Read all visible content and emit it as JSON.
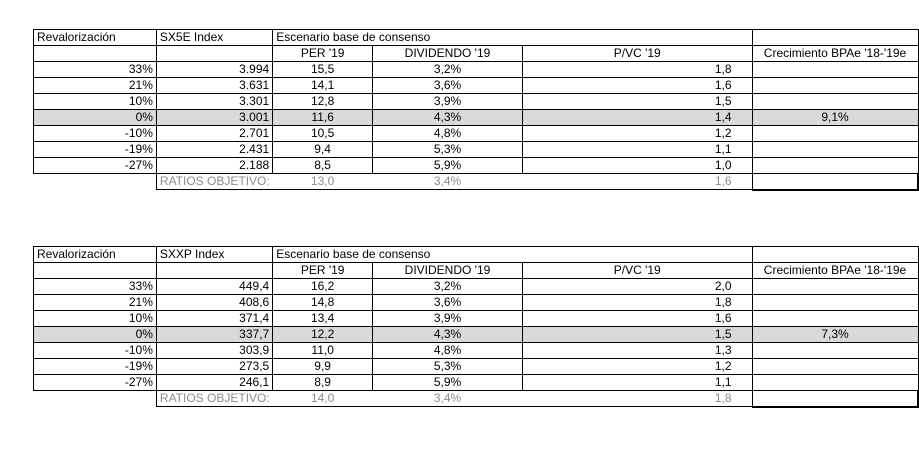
{
  "tables": [
    {
      "row_label_header": "Revalorización",
      "index_header": "SX5E Index",
      "scenario_header": "Escenario base de consenso",
      "col_per": "PER '19",
      "col_div": "DIVIDENDO '19",
      "col_pvc": "P/VC '19",
      "col_growth": "Crecimiento BPAe '18-'19e",
      "rows": [
        {
          "rev": "33%",
          "idx": "3.994",
          "per": "15,5",
          "div": "3,2%",
          "pvc": "1,8",
          "growth": ""
        },
        {
          "rev": "21%",
          "idx": "3.631",
          "per": "14,1",
          "div": "3,6%",
          "pvc": "1,6",
          "growth": ""
        },
        {
          "rev": "10%",
          "idx": "3.301",
          "per": "12,8",
          "div": "3,9%",
          "pvc": "1,5",
          "growth": ""
        },
        {
          "rev": "0%",
          "idx": "3.001",
          "per": "11,6",
          "div": "4,3%",
          "pvc": "1,4",
          "growth": "9,1%"
        },
        {
          "rev": "-10%",
          "idx": "2.701",
          "per": "10,5",
          "div": "4,8%",
          "pvc": "1,2",
          "growth": ""
        },
        {
          "rev": "-19%",
          "idx": "2.431",
          "per": "9,4",
          "div": "5,3%",
          "pvc": "1,1",
          "growth": ""
        },
        {
          "rev": "-27%",
          "idx": "2.188",
          "per": "8,5",
          "div": "5,9%",
          "pvc": "1,0",
          "growth": ""
        }
      ],
      "objective": {
        "label": "RATIOS OBJETIVO:",
        "per": "13,0",
        "div": "3,4%",
        "pvc": "1,6"
      }
    },
    {
      "row_label_header": "Revalorización",
      "index_header": "SXXP Index",
      "scenario_header": "Escenario base de consenso",
      "col_per": "PER '19",
      "col_div": "DIVIDENDO '19",
      "col_pvc": "P/VC '19",
      "col_growth": "Crecimiento BPAe '18-'19e",
      "rows": [
        {
          "rev": "33%",
          "idx": "449,4",
          "per": "16,2",
          "div": "3,2%",
          "pvc": "2,0",
          "growth": ""
        },
        {
          "rev": "21%",
          "idx": "408,6",
          "per": "14,8",
          "div": "3,6%",
          "pvc": "1,8",
          "growth": ""
        },
        {
          "rev": "10%",
          "idx": "371,4",
          "per": "13,4",
          "div": "3,9%",
          "pvc": "1,6",
          "growth": ""
        },
        {
          "rev": "0%",
          "idx": "337,7",
          "per": "12,2",
          "div": "4,3%",
          "pvc": "1,5",
          "growth": "7,3%"
        },
        {
          "rev": "-10%",
          "idx": "303,9",
          "per": "11,0",
          "div": "4,8%",
          "pvc": "1,3",
          "growth": ""
        },
        {
          "rev": "-19%",
          "idx": "273,5",
          "per": "9,9",
          "div": "5,3%",
          "pvc": "1,2",
          "growth": ""
        },
        {
          "rev": "-27%",
          "idx": "246,1",
          "per": "8,9",
          "div": "5,9%",
          "pvc": "1,1",
          "growth": ""
        }
      ],
      "objective": {
        "label": "RATIOS OBJETIVO:",
        "per": "14,0",
        "div": "3,4%",
        "pvc": "1,8"
      }
    }
  ]
}
